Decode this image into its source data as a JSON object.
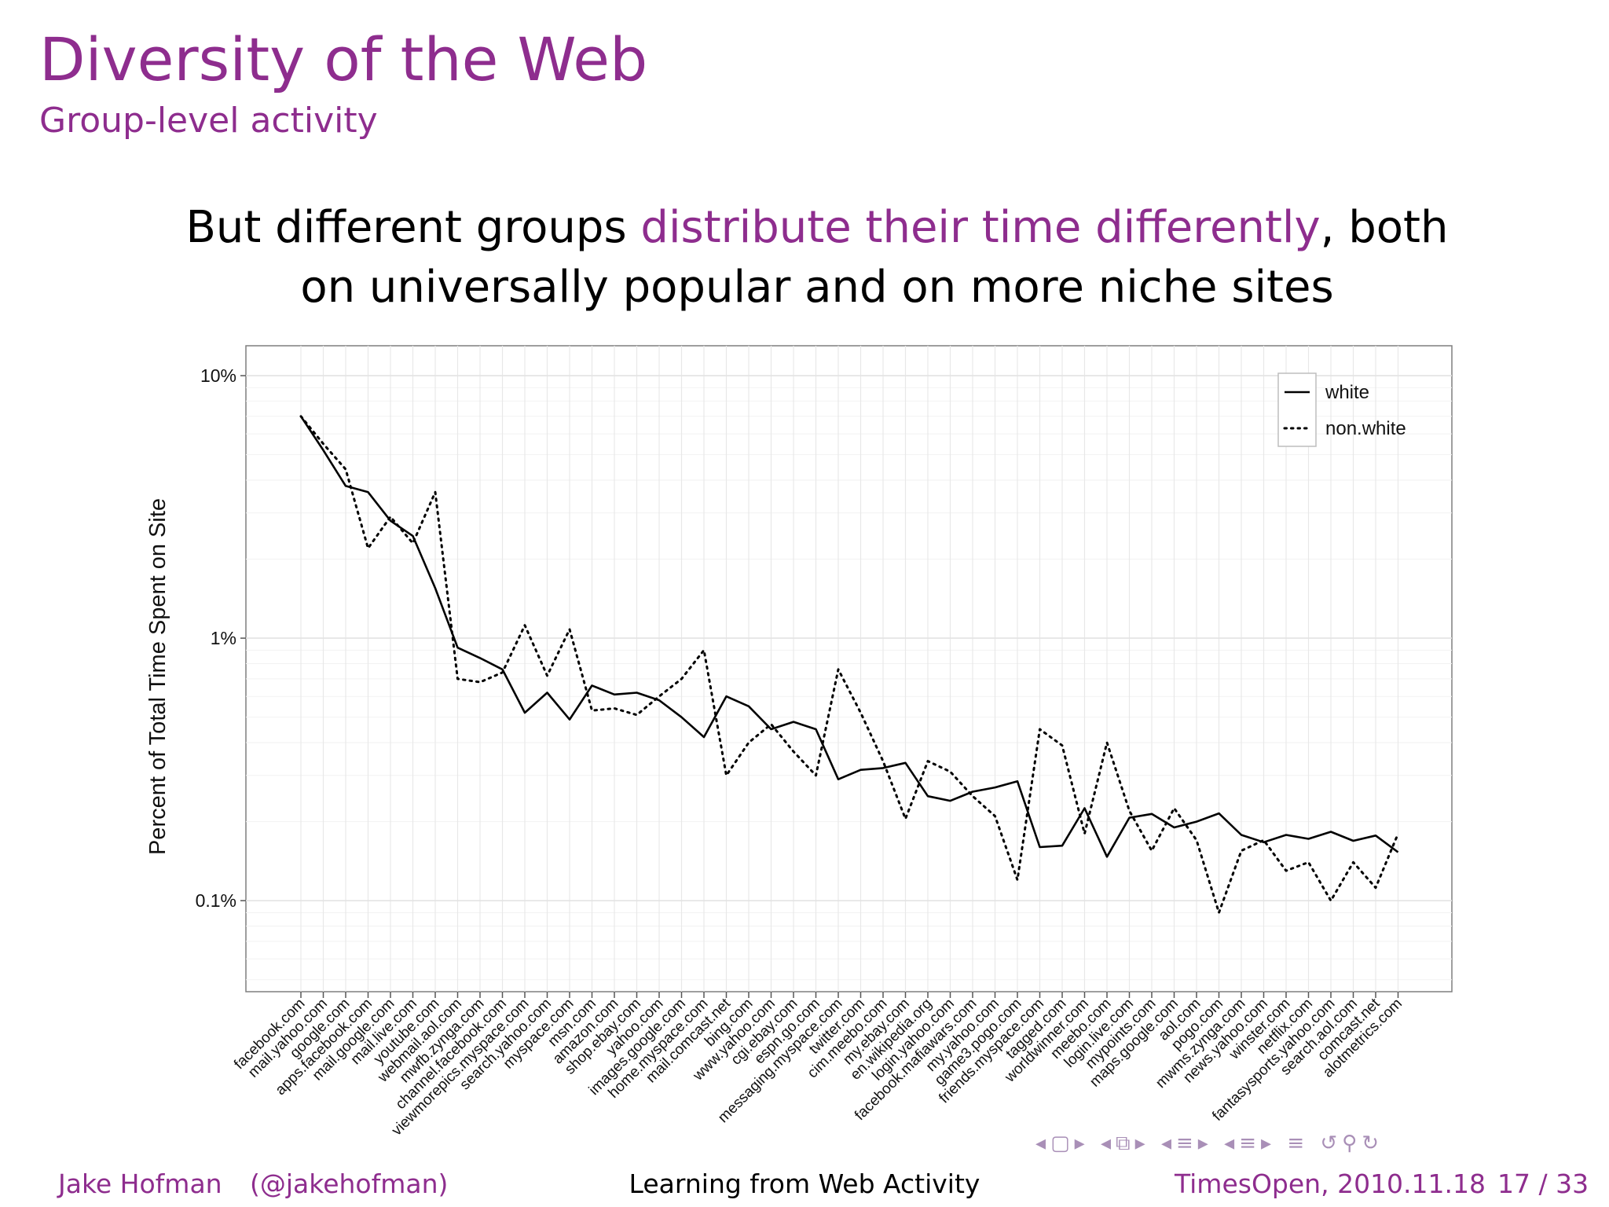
{
  "slide": {
    "title": "Diversity of the Web",
    "subtitle": "Group-level activity",
    "statement_pre": "But different groups ",
    "statement_highlight": "distribute their time differently",
    "statement_post": ", both on universally popular and on more niche sites",
    "accent_color": "#8e2d8e"
  },
  "footer": {
    "author": "Jake Hofman",
    "handle": "(@jakehofman)",
    "talk": "Learning from Web Activity",
    "event": "TimesOpen, 2010.11.18",
    "page": "17 / 33"
  },
  "nav_icons": [
    "triangle-left-icon",
    "frame-icon",
    "triangle-right-icon",
    "triangle-left-icon",
    "stacked-frames-icon",
    "triangle-right-icon",
    "triangle-left-icon",
    "section-icon",
    "triangle-right-icon",
    "triangle-left-icon",
    "subsection-icon",
    "triangle-right-icon",
    "list-icon",
    "loop-icon",
    "search-icon",
    "redo-icon"
  ],
  "chart_data": {
    "type": "line",
    "ylabel": "Percent of Total Time Spent on Site",
    "xlabel": "",
    "yscale": "log",
    "yticks": [
      0.1,
      1,
      10
    ],
    "ytick_labels": [
      "0.1%",
      "1%",
      "10%"
    ],
    "ylim": [
      0.045,
      13
    ],
    "grid": true,
    "legend_position": "top-right",
    "categories": [
      "facebook.com",
      "mail.yahoo.com",
      "google.com",
      "apps.facebook.com",
      "mail.google.com",
      "mail.live.com",
      "youtube.com",
      "webmail.aol.com",
      "mwfb.zynga.com",
      "channel.facebook.com",
      "viewmorepics.myspace.com",
      "search.yahoo.com",
      "myspace.com",
      "msn.com",
      "amazon.com",
      "shop.ebay.com",
      "yahoo.com",
      "images.google.com",
      "home.myspace.com",
      "mail.comcast.net",
      "bing.com",
      "www.yahoo.com",
      "cgi.ebay.com",
      "espn.go.com",
      "messaging.myspace.com",
      "twitter.com",
      "cim.meebo.com",
      "my.ebay.com",
      "en.wikipedia.org",
      "login.yahoo.com",
      "facebook.mafiawars.com",
      "my.yahoo.com",
      "game3.pogo.com",
      "friends.myspace.com",
      "tagged.com",
      "worldwinner.com",
      "meebo.com",
      "login.live.com",
      "mypoints.com",
      "maps.google.com",
      "aol.com",
      "pogo.com",
      "mwms.zynga.com",
      "news.yahoo.com",
      "winster.com",
      "netflix.com",
      "fantasysports.yahoo.com",
      "search.aol.com",
      "comcast.net",
      "alotmetrics.com"
    ],
    "series": [
      {
        "name": "white",
        "style": "solid",
        "values": [
          7.0,
          5.2,
          3.8,
          3.6,
          2.8,
          2.45,
          1.55,
          0.92,
          0.84,
          0.76,
          0.52,
          0.62,
          0.49,
          0.66,
          0.61,
          0.62,
          0.58,
          0.5,
          0.42,
          0.6,
          0.55,
          0.45,
          0.48,
          0.45,
          0.29,
          0.315,
          0.32,
          0.335,
          0.25,
          0.24,
          0.26,
          0.27,
          0.285,
          0.16,
          0.162,
          0.225,
          0.147,
          0.207,
          0.214,
          0.19,
          0.2,
          0.215,
          0.178,
          0.167,
          0.178,
          0.172,
          0.183,
          0.169,
          0.177,
          0.153
        ]
      },
      {
        "name": "non.white",
        "style": "dotted",
        "values": [
          7.0,
          5.5,
          4.4,
          2.2,
          2.9,
          2.3,
          3.6,
          0.7,
          0.68,
          0.74,
          1.12,
          0.72,
          1.08,
          0.53,
          0.54,
          0.51,
          0.6,
          0.7,
          0.9,
          0.3,
          0.4,
          0.47,
          0.37,
          0.3,
          0.76,
          0.52,
          0.34,
          0.205,
          0.34,
          0.31,
          0.25,
          0.21,
          0.12,
          0.45,
          0.39,
          0.18,
          0.4,
          0.22,
          0.155,
          0.225,
          0.17,
          0.09,
          0.155,
          0.17,
          0.13,
          0.14,
          0.1,
          0.14,
          0.112,
          0.18
        ]
      }
    ]
  }
}
